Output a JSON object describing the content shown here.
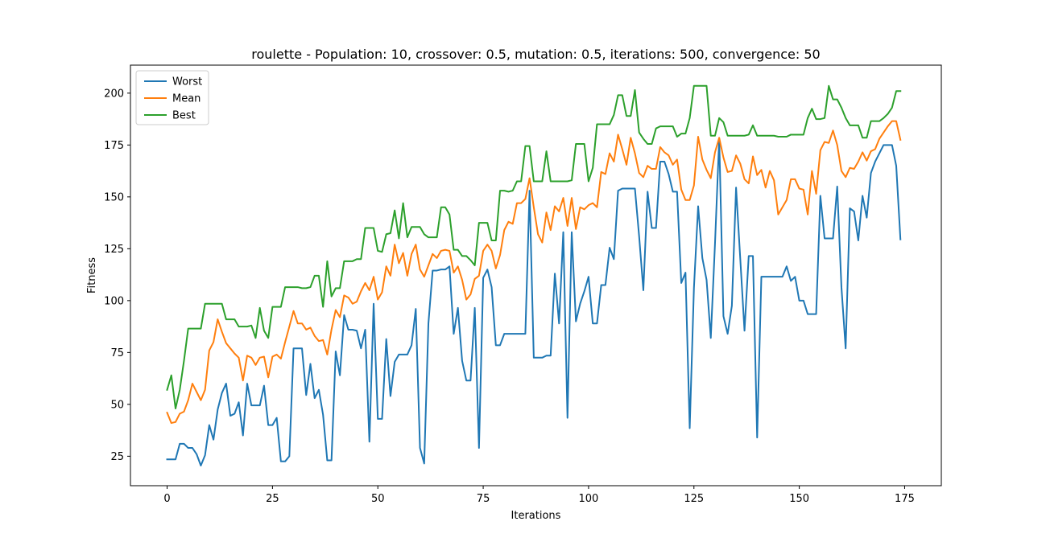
{
  "chart_data": {
    "type": "line",
    "title": "roulette - Population: 10, crossover: 0.5, mutation: 0.5, iterations: 500, convergence: 50",
    "xlabel": "Iterations",
    "ylabel": "Fitness",
    "xlim": [
      -8.7,
      183.7
    ],
    "ylim": [
      10.8,
      213.5
    ],
    "xticks": [
      0,
      25,
      50,
      75,
      100,
      125,
      150,
      175
    ],
    "yticks": [
      25,
      50,
      75,
      100,
      125,
      150,
      175,
      200
    ],
    "legend_position": "top-left",
    "grid": false,
    "series": [
      {
        "name": "Worst",
        "color": "#1f77b4",
        "values": [
          23.5,
          23.5,
          23.5,
          31.0,
          31.0,
          29.0,
          29.0,
          26.0,
          20.5,
          25.5,
          40.0,
          33.0,
          47.5,
          55.5,
          60.0,
          44.5,
          45.5,
          51.0,
          35.0,
          60.0,
          49.5,
          49.5,
          49.5,
          59.0,
          40.0,
          40.0,
          43.5,
          22.5,
          22.5,
          25.0,
          77.0,
          77.0,
          77.0,
          54.5,
          69.5,
          53.0,
          57.0,
          45.0,
          23.0,
          23.0,
          75.5,
          64.0,
          93.0,
          86.0,
          86.0,
          85.5,
          77.0,
          86.0,
          32.0,
          98.5,
          43.0,
          43.0,
          81.5,
          54.0,
          70.5,
          74.0,
          74.0,
          74.0,
          78.5,
          96.0,
          29.0,
          21.5,
          89.0,
          114.5,
          114.5,
          115.0,
          115.0,
          116.5,
          84.0,
          96.5,
          71.0,
          61.5,
          61.5,
          96.5,
          29.0,
          111.0,
          115.0,
          106.5,
          78.5,
          78.5,
          84.0,
          84.0,
          84.0,
          84.0,
          84.0,
          84.0,
          153.0,
          72.5,
          72.5,
          72.5,
          73.5,
          73.5,
          113.0,
          89.0,
          133.0,
          43.5,
          133.0,
          90.0,
          98.5,
          104.5,
          111.5,
          89.0,
          89.0,
          107.5,
          107.5,
          125.5,
          120.0,
          153.0,
          154.0,
          154.0,
          154.0,
          154.0,
          131.0,
          105.0,
          152.5,
          135.0,
          135.0,
          167.0,
          167.0,
          161.0,
          152.5,
          152.5,
          108.5,
          113.5,
          38.5,
          106.0,
          145.5,
          120.5,
          110.0,
          82.0,
          127.5,
          178.0,
          92.5,
          84.0,
          97.5,
          154.5,
          120.0,
          85.5,
          121.5,
          121.5,
          34.0,
          111.5,
          111.5,
          111.5,
          111.5,
          111.5,
          111.5,
          116.5,
          109.5,
          111.5,
          100.0,
          100.0,
          93.5,
          93.5,
          93.5,
          150.5,
          130.0,
          130.0,
          130.0,
          155.0,
          106.5,
          77.0,
          144.5,
          143.0,
          129.0,
          150.5,
          140.0,
          161.5,
          167.0,
          171.0,
          175.0,
          175.0,
          175.0,
          165.0,
          129.5
        ]
      },
      {
        "name": "Mean",
        "color": "#ff7f0e",
        "values": [
          46.0,
          41.0,
          41.5,
          45.5,
          46.5,
          52.0,
          60.0,
          56.0,
          52.0,
          57.0,
          76.0,
          80.0,
          91.0,
          85.0,
          79.5,
          77.0,
          74.5,
          72.5,
          61.5,
          73.5,
          72.5,
          69.0,
          72.5,
          73.0,
          63.0,
          73.0,
          74.0,
          72.0,
          80.0,
          87.5,
          95.0,
          89.0,
          89.0,
          86.0,
          87.0,
          83.0,
          80.5,
          81.0,
          74.0,
          86.0,
          95.5,
          92.0,
          102.5,
          101.5,
          98.5,
          99.5,
          104.5,
          108.5,
          105.0,
          111.5,
          100.5,
          104.0,
          116.5,
          112.0,
          127.0,
          118.0,
          123.0,
          112.0,
          122.5,
          127.0,
          115.0,
          111.5,
          117.0,
          122.5,
          120.5,
          124.0,
          124.5,
          124.0,
          113.5,
          116.5,
          110.0,
          100.5,
          103.0,
          110.5,
          112.0,
          124.0,
          127.0,
          124.0,
          115.5,
          122.0,
          134.0,
          138.0,
          137.0,
          147.0,
          147.0,
          149.0,
          159.0,
          145.0,
          132.0,
          128.0,
          142.5,
          134.0,
          145.5,
          143.0,
          149.5,
          136.0,
          149.5,
          134.5,
          145.0,
          144.0,
          146.0,
          147.0,
          145.0,
          162.0,
          161.0,
          171.0,
          167.0,
          180.0,
          173.0,
          165.5,
          178.5,
          171.0,
          161.5,
          159.5,
          165.0,
          163.5,
          163.5,
          174.0,
          171.5,
          170.0,
          165.5,
          168.0,
          153.5,
          148.5,
          148.5,
          155.5,
          179.0,
          168.0,
          163.0,
          159.0,
          171.5,
          178.5,
          169.0,
          162.0,
          162.5,
          170.0,
          166.0,
          158.5,
          156.5,
          169.5,
          160.5,
          163.0,
          154.5,
          162.5,
          158.0,
          141.5,
          145.0,
          148.5,
          158.5,
          158.5,
          154.0,
          153.5,
          141.5,
          162.5,
          151.5,
          172.5,
          176.5,
          176.0,
          182.0,
          175.0,
          162.5,
          159.5,
          164.0,
          163.5,
          167.0,
          171.5,
          167.5,
          172.0,
          173.0,
          178.0,
          181.0,
          184.0,
          186.5,
          186.5,
          177.5
        ]
      },
      {
        "name": "Best",
        "color": "#2ca02c",
        "values": [
          57.0,
          64.0,
          48.0,
          57.0,
          71.0,
          86.5,
          86.5,
          86.5,
          86.5,
          98.5,
          98.5,
          98.5,
          98.5,
          98.5,
          91.0,
          91.0,
          91.0,
          87.5,
          87.5,
          87.5,
          88.0,
          82.0,
          96.5,
          85.5,
          82.0,
          97.0,
          97.0,
          97.0,
          106.5,
          106.5,
          106.5,
          106.5,
          106.0,
          106.0,
          106.5,
          112.0,
          112.0,
          97.0,
          119.0,
          102.0,
          106.0,
          106.0,
          119.0,
          119.0,
          119.0,
          120.0,
          120.0,
          135.0,
          135.0,
          135.0,
          124.0,
          123.5,
          132.0,
          132.5,
          143.5,
          130.0,
          147.0,
          130.5,
          135.5,
          135.5,
          135.5,
          132.0,
          130.5,
          130.5,
          130.5,
          145.0,
          145.0,
          141.5,
          124.5,
          124.5,
          121.5,
          121.5,
          119.5,
          117.0,
          137.5,
          137.5,
          137.5,
          129.0,
          129.0,
          153.0,
          153.0,
          152.5,
          153.0,
          157.5,
          157.5,
          174.5,
          174.5,
          157.5,
          157.5,
          157.5,
          172.0,
          157.5,
          157.5,
          157.5,
          157.5,
          157.5,
          158.0,
          175.5,
          175.5,
          175.5,
          157.5,
          164.0,
          185.0,
          185.0,
          185.0,
          185.0,
          189.5,
          199.0,
          199.0,
          189.0,
          189.0,
          201.5,
          181.0,
          178.0,
          175.5,
          175.5,
          183.0,
          184.0,
          184.0,
          184.0,
          184.0,
          179.0,
          180.5,
          180.5,
          188.0,
          203.5,
          203.5,
          203.5,
          203.5,
          179.5,
          179.5,
          188.0,
          186.0,
          179.5,
          179.5,
          179.5,
          179.5,
          179.5,
          180.0,
          184.5,
          179.5,
          179.5,
          179.5,
          179.5,
          179.5,
          179.0,
          179.0,
          179.0,
          180.0,
          180.0,
          180.0,
          180.0,
          188.0,
          192.5,
          187.5,
          187.5,
          188.0,
          203.5,
          197.0,
          197.0,
          193.0,
          188.0,
          184.5,
          184.5,
          184.5,
          178.5,
          178.5,
          186.5,
          186.5,
          186.5,
          188.0,
          190.0,
          193.0,
          201.0,
          201.0
        ]
      }
    ]
  }
}
